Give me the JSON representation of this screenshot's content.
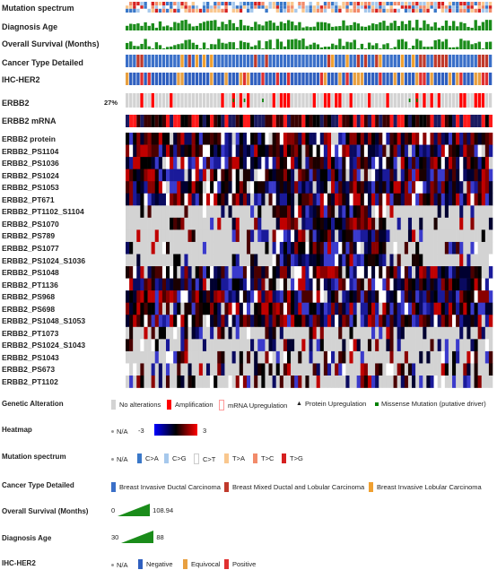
{
  "tracks": [
    {
      "label": "Mutation spectrum"
    },
    {
      "label": "Diagnosis Age"
    },
    {
      "label": "Overall Survival (Months)"
    },
    {
      "label": "Cancer Type Detailed"
    },
    {
      "label": "IHC-HER2"
    },
    {
      "label": "ERBB2",
      "pct": "27%"
    },
    {
      "label": "ERBB2  mRNA"
    }
  ],
  "heatmap_rows": [
    "ERBB2  protein",
    "ERBB2_PS1104",
    "ERBB2_PS1036",
    "ERBB2_PS1024",
    "ERBB2_PS1053",
    "ERBB2_PT671",
    "ERBB2_PT1102_S1104",
    "ERBB2_PS1070",
    "ERBB2_PS789",
    "ERBB2_PS1077",
    "ERBB2_PS1024_S1036",
    "ERBB2_PS1048",
    "ERBB2_PT1136",
    "ERBB2_PS968",
    "ERBB2_PS698",
    "ERBB2_PS1048_S1053",
    "ERBB2_PT1073",
    "ERBB2_PS1024_S1043",
    "ERBB2_PS1043",
    "ERBB2_PS673",
    "ERBB2_PT1102"
  ],
  "legend": {
    "genetic_alteration": {
      "title": "Genetic Alteration",
      "items": [
        "No alterations",
        "Amplification",
        "mRNA Upregulation",
        "Protein Upregulation",
        "Missense Mutation (putative driver)"
      ]
    },
    "heatmap": {
      "title": "Heatmap",
      "na": "N/A",
      "min": "-3",
      "max": "3"
    },
    "mutation_spectrum": {
      "title": "Mutation spectrum",
      "na": "N/A",
      "items": [
        "C>A",
        "C>G",
        "C>T",
        "T>A",
        "T>C",
        "T>G"
      ]
    },
    "cancer_type": {
      "title": "Cancer Type Detailed",
      "items": [
        "Breast Invasive Ductal Carcinoma",
        "Breast Mixed Ductal and Lobular Carcinoma",
        "Breast Invasive Lobular Carcinoma"
      ]
    },
    "overall_survival": {
      "title": "Overall Survival (Months)",
      "min": "0",
      "max": "108.94"
    },
    "diagnosis_age": {
      "title": "Diagnosis Age",
      "min": "30",
      "max": "88"
    },
    "ihc_her2": {
      "title": "IHC-HER2",
      "na": "N/A",
      "items": [
        "Negative",
        "Equivocal",
        "Positive"
      ]
    }
  },
  "colors": {
    "gray": "#d3d3d3",
    "amp": "#ff0000",
    "missense": "#008000",
    "cancer_ductal": "#3a6fc8",
    "cancer_lobular": "#f0a030",
    "bars": "#1a8c1a",
    "her2_neg": "#2f5fbf",
    "her2_pos": "#e03030",
    "her2_eq": "#e8a040",
    "mut_ca": "#3a78c9",
    "mut_cg": "#a6c8ec",
    "mut_ct": "#ffffff",
    "mut_ta": "#f9c78e",
    "mut_tc": "#f28b6a",
    "mut_tg": "#d62020"
  }
}
